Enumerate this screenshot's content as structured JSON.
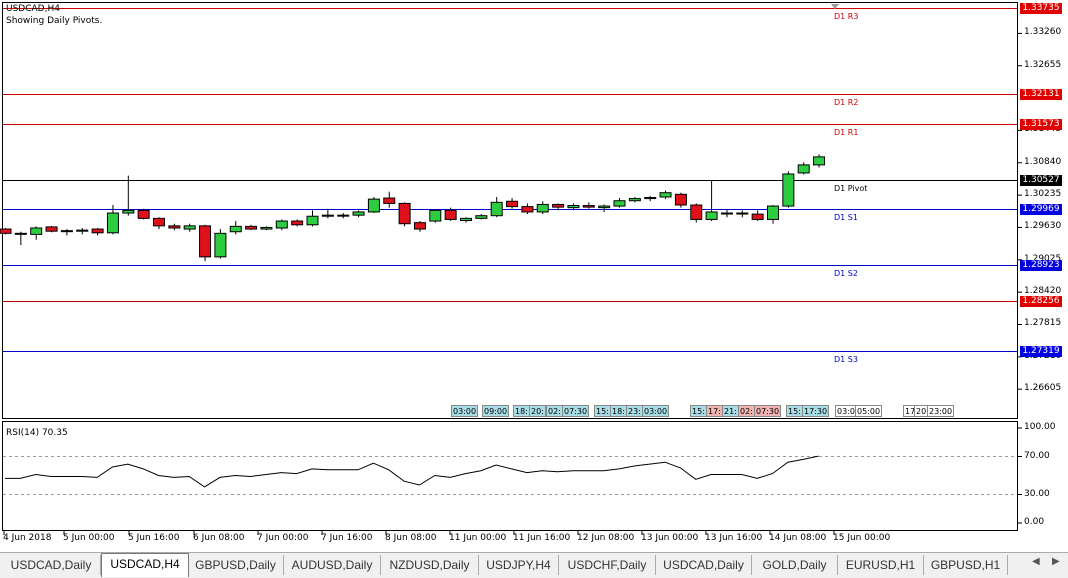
{
  "chart": {
    "symbol_label": "USDCAD,H4",
    "subtitle": "Showing Daily Pivots."
  },
  "price_axis": {
    "ticks": [
      "1.33260",
      "1.32655",
      "1.31445",
      "1.30840",
      "1.30235",
      "1.29630",
      "1.29025",
      "1.28420",
      "1.27815",
      "1.27210",
      "1.26605"
    ]
  },
  "pivots": [
    {
      "name": "D1 R3",
      "value": "1.33735",
      "color": "#cc0000",
      "tag_style": "r"
    },
    {
      "name": "D1 R2",
      "value": "1.32131",
      "color": "#cc0000",
      "tag_style": "r"
    },
    {
      "name": "D1 R1",
      "value": "1.31573",
      "color": "#cc0000",
      "tag_style": "r"
    },
    {
      "name": "D1 Pivot",
      "value": "1.30527",
      "color": "#000000",
      "tag_style": "k"
    },
    {
      "name": "D1 S1",
      "value": "1.29969",
      "color": "#0000cc",
      "tag_style": "b"
    },
    {
      "name": "D1 S2",
      "value": "1.28923",
      "color": "#0000cc",
      "tag_style": "b"
    },
    {
      "name": "",
      "value": "1.28256",
      "color": "#cc0000",
      "tag_style": "r"
    },
    {
      "name": "D1 S3",
      "value": "1.27319",
      "color": "#0000cc",
      "tag_style": "b"
    }
  ],
  "session_boxes": [
    {
      "text": "03:00",
      "style": "t"
    },
    {
      "text": "09:00",
      "style": "t"
    },
    {
      "text": "18:",
      "style": "t"
    },
    {
      "text": "20:",
      "style": "t"
    },
    {
      "text": "02:",
      "style": "t"
    },
    {
      "text": "07:30",
      "style": "t"
    },
    {
      "text": "15:",
      "style": "t"
    },
    {
      "text": "18:",
      "style": "t"
    },
    {
      "text": "23:",
      "style": "t"
    },
    {
      "text": "03:00",
      "style": "t"
    },
    {
      "text": "15:",
      "style": "t"
    },
    {
      "text": "17:",
      "style": "r"
    },
    {
      "text": "21:",
      "style": "t"
    },
    {
      "text": "02:",
      "style": "r"
    },
    {
      "text": "07:30",
      "style": "r"
    },
    {
      "text": "15:",
      "style": "t"
    },
    {
      "text": "17:30",
      "style": "t"
    },
    {
      "text": "03:00",
      "style": "w"
    },
    {
      "text": "05:00",
      "style": "w"
    },
    {
      "text": "17",
      "style": "w"
    },
    {
      "text": "20",
      "style": "w"
    },
    {
      "text": "23:00",
      "style": "w"
    }
  ],
  "rsi": {
    "label": "RSI(14) 70.35",
    "ticks": [
      "100.00",
      "70.00",
      "30.00",
      "0.00"
    ]
  },
  "time_axis": [
    "4 Jun 2018",
    "5 Jun 00:00",
    "5 Jun 16:00",
    "6 Jun 08:00",
    "7 Jun 00:00",
    "7 Jun 16:00",
    "8 Jun 08:00",
    "11 Jun 00:00",
    "11 Jun 16:00",
    "12 Jun 08:00",
    "13 Jun 00:00",
    "13 Jun 16:00",
    "14 Jun 08:00",
    "15 Jun 00:00"
  ],
  "tabs": [
    {
      "label": "USDCAD,Daily",
      "active": false
    },
    {
      "label": "USDCAD,H4",
      "active": true
    },
    {
      "label": "GBPUSD,Daily",
      "active": false
    },
    {
      "label": "AUDUSD,Daily",
      "active": false
    },
    {
      "label": "NZDUSD,Daily",
      "active": false
    },
    {
      "label": "USDJPY,H4",
      "active": false
    },
    {
      "label": "USDCHF,Daily",
      "active": false
    },
    {
      "label": "USDCAD,Daily",
      "active": false
    },
    {
      "label": "GOLD,Daily",
      "active": false
    },
    {
      "label": "EURUSD,H1",
      "active": false
    },
    {
      "label": "GBPUSD,H1",
      "active": false
    }
  ],
  "candles": [
    {
      "o": 1.296,
      "h": 1.2962,
      "l": 1.295,
      "c": 1.2952
    },
    {
      "o": 1.2952,
      "h": 1.2955,
      "l": 1.293,
      "c": 1.2952
    },
    {
      "o": 1.295,
      "h": 1.2965,
      "l": 1.294,
      "c": 1.2962
    },
    {
      "o": 1.2964,
      "h": 1.2966,
      "l": 1.2954,
      "c": 1.2956
    },
    {
      "o": 1.2956,
      "h": 1.296,
      "l": 1.2948,
      "c": 1.2957
    },
    {
      "o": 1.2956,
      "h": 1.2962,
      "l": 1.295,
      "c": 1.2958
    },
    {
      "o": 1.296,
      "h": 1.2962,
      "l": 1.2948,
      "c": 1.2953
    },
    {
      "o": 1.2953,
      "h": 1.3005,
      "l": 1.295,
      "c": 1.299
    },
    {
      "o": 1.299,
      "h": 1.306,
      "l": 1.2985,
      "c": 1.2995
    },
    {
      "o": 1.2995,
      "h": 1.2998,
      "l": 1.2978,
      "c": 1.298
    },
    {
      "o": 1.298,
      "h": 1.2982,
      "l": 1.296,
      "c": 1.2966
    },
    {
      "o": 1.2966,
      "h": 1.297,
      "l": 1.2958,
      "c": 1.2962
    },
    {
      "o": 1.296,
      "h": 1.297,
      "l": 1.2955,
      "c": 1.2966
    },
    {
      "o": 1.2966,
      "h": 1.2968,
      "l": 1.29,
      "c": 1.2908
    },
    {
      "o": 1.2908,
      "h": 1.296,
      "l": 1.2905,
      "c": 1.2952
    },
    {
      "o": 1.2955,
      "h": 1.2975,
      "l": 1.295,
      "c": 1.2965
    },
    {
      "o": 1.2965,
      "h": 1.2968,
      "l": 1.2958,
      "c": 1.296
    },
    {
      "o": 1.296,
      "h": 1.2965,
      "l": 1.2958,
      "c": 1.2963
    },
    {
      "o": 1.2962,
      "h": 1.2978,
      "l": 1.2958,
      "c": 1.2975
    },
    {
      "o": 1.2975,
      "h": 1.2978,
      "l": 1.2965,
      "c": 1.2968
    },
    {
      "o": 1.2968,
      "h": 1.2995,
      "l": 1.2965,
      "c": 1.2984
    },
    {
      "o": 1.2984,
      "h": 1.2998,
      "l": 1.298,
      "c": 1.2986
    },
    {
      "o": 1.2985,
      "h": 1.299,
      "l": 1.298,
      "c": 1.2986
    },
    {
      "o": 1.2986,
      "h": 1.2995,
      "l": 1.2982,
      "c": 1.2992
    },
    {
      "o": 1.2992,
      "h": 1.302,
      "l": 1.299,
      "c": 1.3016
    },
    {
      "o": 1.3018,
      "h": 1.303,
      "l": 1.3,
      "c": 1.3008
    },
    {
      "o": 1.3008,
      "h": 1.301,
      "l": 1.2965,
      "c": 1.297
    },
    {
      "o": 1.2972,
      "h": 1.2975,
      "l": 1.2955,
      "c": 1.296
    },
    {
      "o": 1.2975,
      "h": 1.2995,
      "l": 1.2972,
      "c": 1.2995
    },
    {
      "o": 1.2995,
      "h": 1.3,
      "l": 1.2975,
      "c": 1.2978
    },
    {
      "o": 1.2976,
      "h": 1.2982,
      "l": 1.2972,
      "c": 1.298
    },
    {
      "o": 1.298,
      "h": 1.2988,
      "l": 1.2978,
      "c": 1.2985
    },
    {
      "o": 1.2985,
      "h": 1.302,
      "l": 1.2982,
      "c": 1.301
    },
    {
      "o": 1.3012,
      "h": 1.3018,
      "l": 1.2998,
      "c": 1.3002
    },
    {
      "o": 1.3002,
      "h": 1.3008,
      "l": 1.2988,
      "c": 1.2992
    },
    {
      "o": 1.2992,
      "h": 1.3012,
      "l": 1.2988,
      "c": 1.3006
    },
    {
      "o": 1.3006,
      "h": 1.3008,
      "l": 1.2995,
      "c": 1.3001
    },
    {
      "o": 1.3,
      "h": 1.3008,
      "l": 1.2995,
      "c": 1.3004
    },
    {
      "o": 1.3004,
      "h": 1.301,
      "l": 1.2998,
      "c": 1.3001
    },
    {
      "o": 1.3,
      "h": 1.3006,
      "l": 1.2992,
      "c": 1.3003
    },
    {
      "o": 1.3003,
      "h": 1.3018,
      "l": 1.3,
      "c": 1.3013
    },
    {
      "o": 1.3013,
      "h": 1.302,
      "l": 1.301,
      "c": 1.3017
    },
    {
      "o": 1.3017,
      "h": 1.3022,
      "l": 1.3012,
      "c": 1.3019
    },
    {
      "o": 1.302,
      "h": 1.3032,
      "l": 1.3016,
      "c": 1.3028
    },
    {
      "o": 1.3025,
      "h": 1.3028,
      "l": 1.3,
      "c": 1.3005
    },
    {
      "o": 1.3005,
      "h": 1.3008,
      "l": 1.2972,
      "c": 1.2978
    },
    {
      "o": 1.2978,
      "h": 1.3052,
      "l": 1.2975,
      "c": 1.2992
    },
    {
      "o": 1.299,
      "h": 1.2996,
      "l": 1.2982,
      "c": 1.299
    },
    {
      "o": 1.299,
      "h": 1.2995,
      "l": 1.2982,
      "c": 1.2989
    },
    {
      "o": 1.2988,
      "h": 1.2995,
      "l": 1.2975,
      "c": 1.2978
    },
    {
      "o": 1.2978,
      "h": 1.3005,
      "l": 1.297,
      "c": 1.3003
    },
    {
      "o": 1.3003,
      "h": 1.3068,
      "l": 1.3,
      "c": 1.3063
    },
    {
      "o": 1.3065,
      "h": 1.3085,
      "l": 1.3062,
      "c": 1.308
    },
    {
      "o": 1.308,
      "h": 1.31,
      "l": 1.3075,
      "c": 1.3095
    }
  ],
  "rsi_values": [
    47,
    47,
    51,
    49,
    49,
    49,
    48,
    59,
    62,
    57,
    50,
    48,
    49,
    38,
    48,
    50,
    49,
    51,
    53,
    52,
    57,
    56,
    56,
    56,
    63,
    56,
    44,
    40,
    50,
    48,
    52,
    55,
    61,
    57,
    53,
    55,
    54,
    55,
    55,
    55,
    57,
    60,
    62,
    64,
    58,
    46,
    51,
    51,
    51,
    47,
    52,
    64,
    67,
    70.35
  ]
}
